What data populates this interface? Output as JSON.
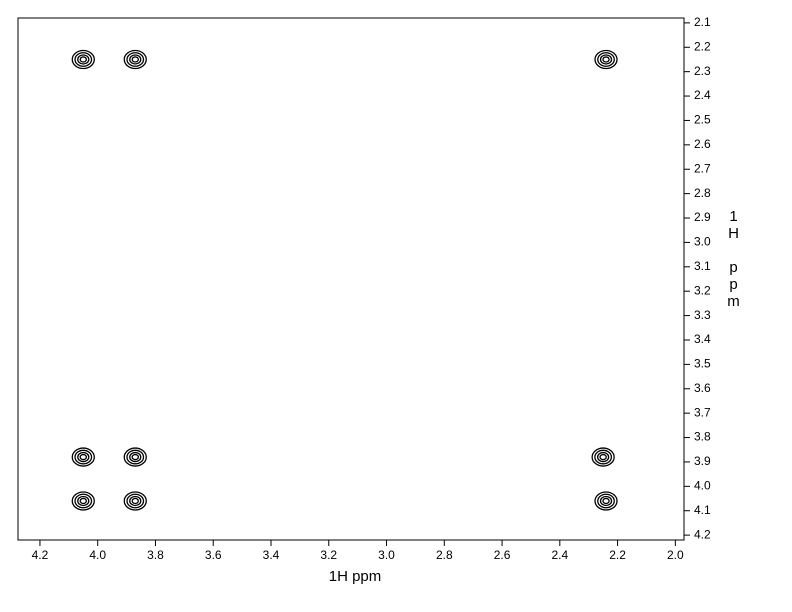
{
  "chart_data": {
    "type": "scatter",
    "x_label": "1H ppm",
    "y_label": "1H ppm",
    "xlim": [
      4.276,
      1.97
    ],
    "ylim": [
      2.08,
      4.22
    ],
    "xticks": [
      4.2,
      {
        "value": 4.0,
        "label": "4.0"
      },
      3.8,
      3.6,
      3.4,
      3.2,
      {
        "value": 3.0,
        "label": "3.0"
      },
      2.8,
      2.6,
      2.4,
      2.2,
      {
        "value": 2.0,
        "label": "2.0"
      }
    ],
    "yticks": [
      2.1,
      2.2,
      2.3,
      2.4,
      2.5,
      2.6,
      2.7,
      2.8,
      2.9,
      {
        "value": 3.0,
        "label": "3.0"
      },
      3.1,
      3.2,
      3.3,
      3.4,
      3.5,
      3.6,
      3.7,
      3.8,
      3.9,
      {
        "value": 4.0,
        "label": "4.0"
      },
      4.1,
      4.2
    ],
    "color": "#000000",
    "x": [
      4.05,
      3.87,
      2.24,
      4.05,
      3.87,
      2.25,
      4.05,
      3.87,
      2.24
    ],
    "values": [
      2.25,
      2.25,
      2.25,
      3.88,
      3.88,
      3.88,
      4.06,
      4.06,
      4.06
    ]
  }
}
